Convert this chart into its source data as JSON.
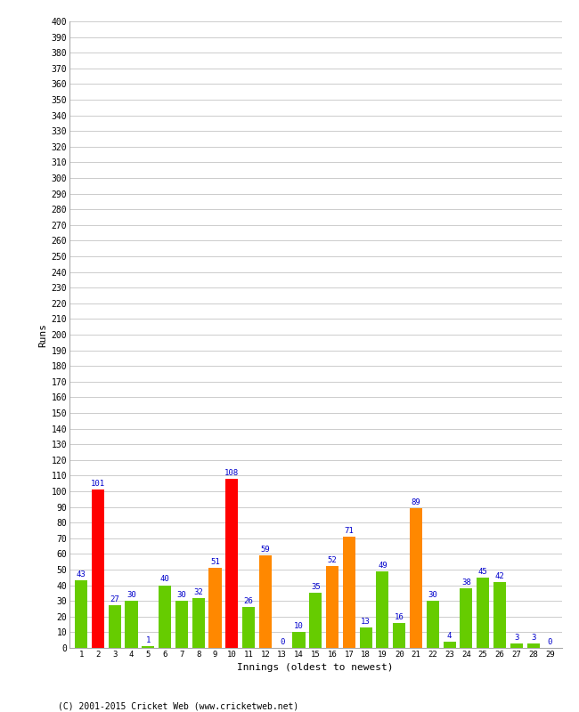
{
  "innings": [
    1,
    2,
    3,
    4,
    5,
    6,
    7,
    8,
    9,
    10,
    11,
    12,
    13,
    14,
    15,
    16,
    17,
    18,
    19,
    20,
    21,
    22,
    23,
    24,
    25,
    26,
    27,
    28,
    29
  ],
  "runs": [
    43,
    101,
    27,
    30,
    1,
    40,
    30,
    32,
    51,
    108,
    26,
    59,
    0,
    10,
    35,
    52,
    71,
    13,
    49,
    16,
    89,
    30,
    4,
    38,
    45,
    42,
    3,
    3,
    0
  ],
  "colors": [
    "#66cc00",
    "#ff0000",
    "#66cc00",
    "#66cc00",
    "#66cc00",
    "#66cc00",
    "#66cc00",
    "#66cc00",
    "#ff8800",
    "#ff0000",
    "#66cc00",
    "#ff8800",
    "#66cc00",
    "#66cc00",
    "#66cc00",
    "#ff8800",
    "#ff8800",
    "#66cc00",
    "#66cc00",
    "#66cc00",
    "#ff8800",
    "#66cc00",
    "#66cc00",
    "#66cc00",
    "#66cc00",
    "#66cc00",
    "#66cc00",
    "#66cc00",
    "#66cc00"
  ],
  "ylabel": "Runs",
  "xlabel": "Innings (oldest to newest)",
  "ylim": [
    0,
    400
  ],
  "ytick_step": 10,
  "footer": "(C) 2001-2015 Cricket Web (www.cricketweb.net)",
  "bg_color": "#ffffff",
  "grid_color": "#cccccc",
  "label_color": "#0000cc",
  "bar_width": 0.75,
  "figwidth": 6.5,
  "figheight": 8.0,
  "dpi": 100
}
